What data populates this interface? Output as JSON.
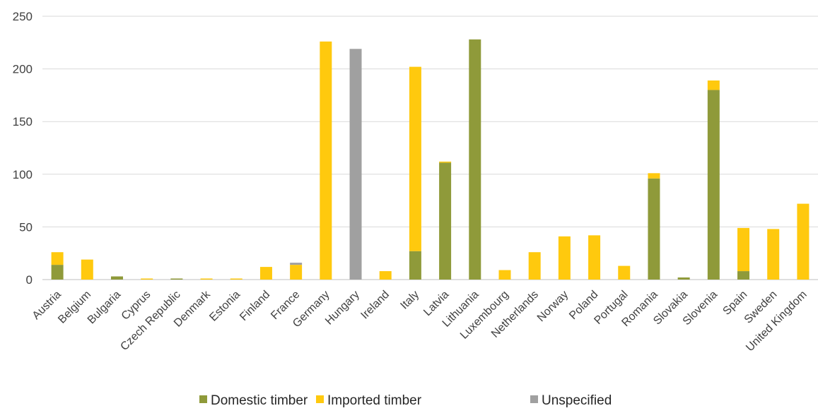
{
  "chart_data": {
    "type": "bar",
    "stacked": true,
    "title": "",
    "xlabel": "",
    "ylabel": "",
    "ylim": [
      0,
      250
    ],
    "yticks": [
      0,
      50,
      100,
      150,
      200,
      250
    ],
    "grid": true,
    "legend_position": "bottom",
    "categories": [
      "Austria",
      "Belgium",
      "Bulgaria",
      "Cyprus",
      "Czech Republic",
      "Denmark",
      "Estonia",
      "Finland",
      "France",
      "Germany",
      "Hungary",
      "Ireland",
      "Italy",
      "Latvia",
      "Lithuania",
      "Luxembourg",
      "Netherlands",
      "Norway",
      "Poland",
      "Portugal",
      "Romania",
      "Slovakia",
      "Slovenia",
      "Spain",
      "Sweden",
      "United Kingdom"
    ],
    "series": [
      {
        "name": "Domestic timber",
        "color": "#8f9a3a",
        "values": [
          14,
          0,
          3,
          0,
          1,
          0,
          0,
          0,
          0,
          0,
          0,
          0,
          27,
          111,
          228,
          0,
          0,
          0,
          0,
          0,
          96,
          2,
          180,
          8,
          0,
          0
        ]
      },
      {
        "name": "Imported timber",
        "color": "#ffc90e",
        "values": [
          12,
          19,
          0,
          1,
          0,
          1,
          1,
          12,
          14,
          226,
          0,
          8,
          175,
          1,
          0,
          9,
          26,
          41,
          42,
          13,
          5,
          0,
          9,
          41,
          48,
          72
        ]
      },
      {
        "name": "Unspecified",
        "color": "#a0a0a0",
        "values": [
          0,
          0,
          0,
          0,
          0,
          0,
          0,
          0,
          2,
          0,
          219,
          0,
          0,
          0,
          0,
          0,
          0,
          0,
          0,
          0,
          0,
          0,
          0,
          0,
          0,
          0
        ]
      }
    ]
  }
}
